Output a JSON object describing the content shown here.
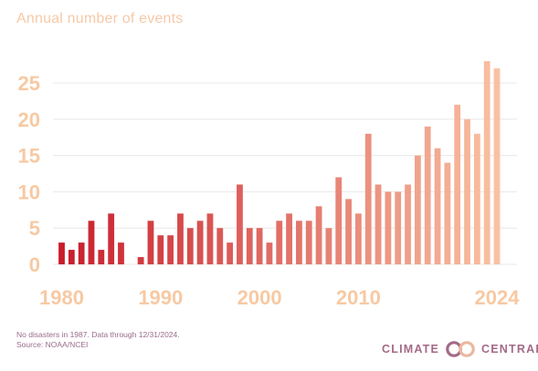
{
  "chart_data": {
    "type": "bar",
    "title": "Annual number of events",
    "xlabel": "",
    "ylabel": "",
    "ylim": [
      0,
      28
    ],
    "yticks": [
      0,
      5,
      10,
      15,
      20,
      25
    ],
    "xticks": [
      "1980",
      "1990",
      "2000",
      "2010",
      "2024"
    ],
    "grid": true,
    "x": [
      1980,
      1981,
      1982,
      1983,
      1984,
      1985,
      1986,
      1987,
      1988,
      1989,
      1990,
      1991,
      1992,
      1993,
      1994,
      1995,
      1996,
      1997,
      1998,
      1999,
      2000,
      2001,
      2002,
      2003,
      2004,
      2005,
      2006,
      2007,
      2008,
      2009,
      2010,
      2011,
      2012,
      2013,
      2014,
      2015,
      2016,
      2017,
      2018,
      2019,
      2020,
      2021,
      2022,
      2023,
      2024
    ],
    "values": [
      3,
      2,
      3,
      6,
      2,
      7,
      3,
      0,
      1,
      6,
      4,
      4,
      7,
      5,
      6,
      7,
      5,
      3,
      11,
      5,
      5,
      3,
      6,
      7,
      6,
      6,
      8,
      5,
      12,
      9,
      7,
      18,
      11,
      10,
      10,
      11,
      15,
      19,
      16,
      14,
      22,
      20,
      18,
      28,
      27
    ],
    "color_start": "#c91d2b",
    "color_end": "#f9c1a2"
  },
  "footnote": {
    "line1": "No disasters in 1987. Data through 12/31/2024.",
    "line2": "Source: NOAA/NCEI"
  },
  "logo": {
    "left": "CLIMATE",
    "right": "CENTRAL",
    "color": "#a36a86"
  }
}
